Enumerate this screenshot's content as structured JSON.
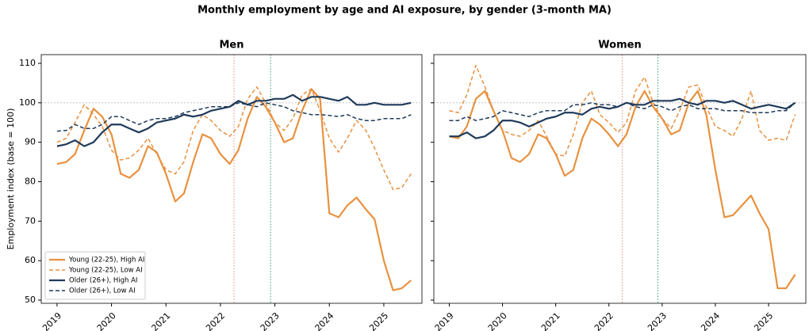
{
  "title": "Monthly employment by age and AI exposure, by gender (3-month MA)",
  "chart_data": [
    {
      "type": "line",
      "title": "Men",
      "ylabel": "Employment index (base = 100)",
      "x": [
        2019,
        2019.17,
        2019.33,
        2019.5,
        2019.67,
        2019.83,
        2020,
        2020.17,
        2020.33,
        2020.5,
        2020.67,
        2020.83,
        2021,
        2021.17,
        2021.33,
        2021.5,
        2021.67,
        2021.83,
        2022,
        2022.17,
        2022.33,
        2022.5,
        2022.67,
        2022.83,
        2023,
        2023.17,
        2023.33,
        2023.5,
        2023.67,
        2023.83,
        2024,
        2024.17,
        2024.33,
        2024.5,
        2024.67,
        2024.83,
        2025,
        2025.17,
        2025.33,
        2025.5
      ],
      "xlim": [
        2018.71,
        2025.7
      ],
      "xticks": [
        2019,
        2020,
        2021,
        2022,
        2023,
        2024,
        2025
      ],
      "ylim": [
        49.2,
        112.2
      ],
      "yticks": [
        50,
        60,
        70,
        80,
        90,
        100,
        110
      ],
      "ytick_labels": true,
      "hline": 100,
      "vlines": [
        {
          "x": 2022.25,
          "color": "#f08080"
        },
        {
          "x": 2022.92,
          "color": "#2e8b57"
        }
      ],
      "legend": "lower left",
      "series": [
        {
          "name": "Young (22-25), High AI",
          "color": "#e8913f",
          "linestyle": "solid",
          "width": 2.2,
          "values": [
            84.5,
            85,
            87,
            93,
            98.5,
            96.5,
            92,
            82,
            81,
            83,
            89,
            87.5,
            82,
            75,
            77,
            85,
            92,
            91,
            87,
            84.5,
            88,
            96,
            101.5,
            99,
            95,
            90,
            91,
            98,
            103.5,
            101,
            72,
            71,
            74,
            76,
            73,
            70.5,
            60,
            52.5,
            53,
            55
          ]
        },
        {
          "name": "Young (22-25), Low AI",
          "color": "#e8913f",
          "linestyle": "dashed",
          "width": 1.5,
          "values": [
            90,
            91,
            95,
            99.5,
            97,
            94,
            88,
            85.5,
            86,
            88,
            91,
            87,
            83,
            82,
            85,
            93,
            97,
            95.5,
            93,
            91.5,
            94,
            101,
            104,
            100,
            95,
            93,
            96,
            102,
            103.5,
            98,
            91,
            87.5,
            91,
            95.5,
            93,
            88.5,
            83,
            78,
            78.5,
            82
          ]
        },
        {
          "name": "Older (26+), High AI",
          "color": "#1f3a5a",
          "linestyle": "solid",
          "width": 2.2,
          "values": [
            89,
            89.5,
            90.5,
            89,
            90,
            92.5,
            94.5,
            94.5,
            93.5,
            92.5,
            93.5,
            95,
            95.5,
            96,
            97,
            96.5,
            97,
            98,
            98.5,
            99,
            100.5,
            99.5,
            100.5,
            100.5,
            101,
            101,
            102,
            100.5,
            101.5,
            101.5,
            101,
            100.5,
            101.5,
            99.5,
            99.5,
            100,
            99.5,
            99.5,
            99.5,
            100
          ]
        },
        {
          "name": "Older (26+), Low AI",
          "color": "#1f3a5a",
          "linestyle": "dashed",
          "width": 1.5,
          "values": [
            92.8,
            93,
            94.5,
            93.5,
            93.5,
            94.5,
            96.5,
            96.5,
            95.5,
            94.5,
            95.5,
            96,
            96,
            96.5,
            97.5,
            98,
            98.5,
            99,
            99,
            99,
            100,
            99.5,
            99,
            100,
            99.5,
            99,
            98,
            97.5,
            97,
            97,
            96.8,
            96.5,
            97,
            96,
            95.5,
            95.5,
            96,
            96,
            96,
            97
          ]
        }
      ]
    },
    {
      "type": "line",
      "title": "Women",
      "x": [
        2019,
        2019.17,
        2019.33,
        2019.5,
        2019.67,
        2019.83,
        2020,
        2020.17,
        2020.33,
        2020.5,
        2020.67,
        2020.83,
        2021,
        2021.17,
        2021.33,
        2021.5,
        2021.67,
        2021.83,
        2022,
        2022.17,
        2022.33,
        2022.5,
        2022.67,
        2022.83,
        2023,
        2023.17,
        2023.33,
        2023.5,
        2023.67,
        2023.83,
        2024,
        2024.17,
        2024.33,
        2024.5,
        2024.67,
        2024.83,
        2025,
        2025.17,
        2025.33,
        2025.5
      ],
      "xlim": [
        2018.71,
        2025.7
      ],
      "xticks": [
        2019,
        2020,
        2021,
        2022,
        2023,
        2024,
        2025
      ],
      "ylim": [
        49.2,
        112.2
      ],
      "yticks": [
        50,
        60,
        70,
        80,
        90,
        100,
        110
      ],
      "ytick_labels": false,
      "hline": 100,
      "vlines": [
        {
          "x": 2022.25,
          "color": "#f08080"
        },
        {
          "x": 2022.92,
          "color": "#2e8b57"
        }
      ],
      "series": [
        {
          "color": "#e8913f",
          "linestyle": "solid",
          "width": 2.2,
          "values": [
            91.5,
            91,
            94,
            101,
            103,
            98,
            93,
            86,
            85,
            87,
            92,
            91,
            87,
            81.5,
            83,
            91,
            96,
            94.5,
            92,
            89,
            92,
            99,
            103,
            99,
            96,
            92,
            93,
            100,
            103,
            97,
            83,
            71,
            71.5,
            74,
            76.5,
            72,
            68,
            53,
            53,
            56.5
          ]
        },
        {
          "color": "#e8913f",
          "linestyle": "dashed",
          "width": 1.5,
          "values": [
            98,
            97.5,
            102,
            109.5,
            104,
            98,
            93,
            92,
            91.5,
            93,
            95.5,
            91.5,
            87,
            86.5,
            92,
            100,
            103,
            97,
            95,
            92.5,
            95,
            103,
            106.5,
            100,
            96,
            93.5,
            98,
            104,
            104.5,
            99,
            94,
            93,
            91.5,
            96,
            103,
            93,
            90.5,
            91,
            90.5,
            97
          ]
        },
        {
          "color": "#1f3a5a",
          "linestyle": "solid",
          "width": 2.2,
          "values": [
            91.5,
            91.5,
            92.5,
            91,
            91.5,
            93,
            95.5,
            95.5,
            95,
            94,
            95,
            96,
            96.5,
            97.5,
            97.5,
            97,
            98.5,
            99,
            98.5,
            99,
            100,
            99.5,
            99.5,
            100.5,
            100.5,
            100.5,
            101,
            100,
            99.5,
            100.5,
            100.5,
            100,
            100.5,
            99.5,
            98.5,
            99,
            99.5,
            99,
            98.5,
            100
          ]
        },
        {
          "color": "#1f3a5a",
          "linestyle": "dashed",
          "width": 1.5,
          "values": [
            95.5,
            95.5,
            96.5,
            95.5,
            96,
            96.5,
            98,
            97.5,
            97,
            96.5,
            97.5,
            98,
            98,
            98,
            99.5,
            99.5,
            100,
            99.5,
            99.5,
            99,
            100,
            99,
            98.5,
            99.5,
            99,
            98,
            99,
            99.5,
            98.5,
            98.5,
            98.5,
            98,
            98,
            98,
            97.5,
            97.5,
            97.5,
            98,
            98,
            100
          ]
        }
      ]
    }
  ]
}
